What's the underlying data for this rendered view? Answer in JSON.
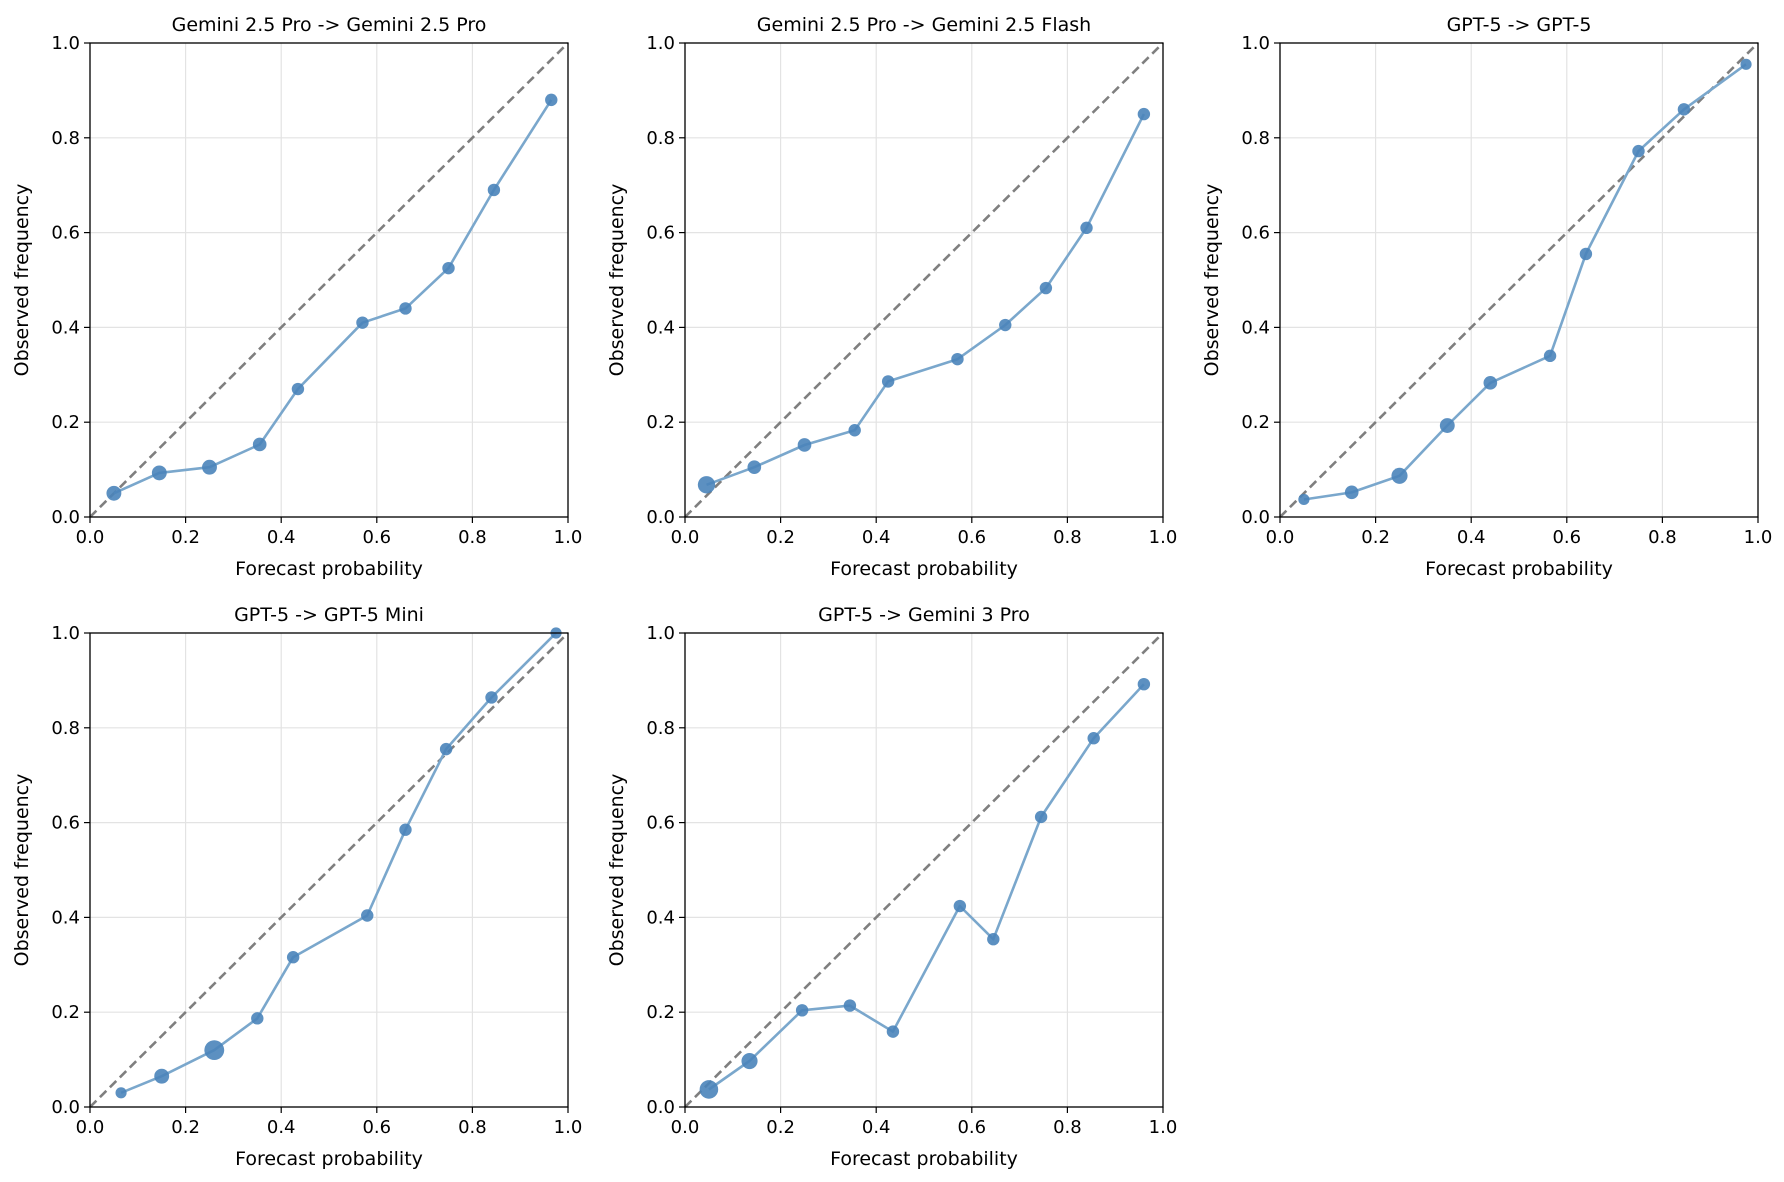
{
  "figure": {
    "layout": "2 rows x 3 columns, 5 panels"
  },
  "colors": {
    "series": "#4a84ba",
    "line": "#7aa7cc",
    "diagonal": "#7f7f7f",
    "grid": "#e3e3e3",
    "axes": "#000000"
  },
  "chart_data": [
    {
      "type": "line",
      "title": "Gemini 2.5 Pro -> Gemini 2.5 Pro",
      "xlabel": "Forecast probability",
      "ylabel": "Observed frequency",
      "xlim": [
        0,
        1
      ],
      "ylim": [
        0,
        1
      ],
      "ticks": [
        "0.0",
        "0.2",
        "0.4",
        "0.6",
        "0.8",
        "1.0"
      ],
      "grid": true,
      "reference": "perfect calibration diagonal (dashed)",
      "x": [
        0.05,
        0.145,
        0.25,
        0.355,
        0.435,
        0.57,
        0.66,
        0.75,
        0.845,
        0.965
      ],
      "y": [
        0.05,
        0.093,
        0.105,
        0.153,
        0.27,
        0.41,
        0.44,
        0.525,
        0.69,
        0.88
      ],
      "sizes": [
        1.2,
        1.2,
        1.2,
        1.1,
        1.0,
        1.0,
        1.0,
        1.0,
        1.0,
        1.0
      ]
    },
    {
      "type": "line",
      "title": "Gemini 2.5 Pro -> Gemini 2.5 Flash",
      "xlabel": "Forecast probability",
      "ylabel": "Observed frequency",
      "xlim": [
        0,
        1
      ],
      "ylim": [
        0,
        1
      ],
      "ticks": [
        "0.0",
        "0.2",
        "0.4",
        "0.6",
        "0.8",
        "1.0"
      ],
      "grid": true,
      "reference": "perfect calibration diagonal (dashed)",
      "x": [
        0.045,
        0.145,
        0.25,
        0.355,
        0.425,
        0.57,
        0.67,
        0.755,
        0.84,
        0.96
      ],
      "y": [
        0.068,
        0.105,
        0.152,
        0.183,
        0.286,
        0.333,
        0.405,
        0.483,
        0.61,
        0.85
      ],
      "sizes": [
        1.4,
        1.1,
        1.1,
        1.0,
        1.0,
        1.0,
        1.0,
        1.0,
        1.0,
        1.0
      ]
    },
    {
      "type": "line",
      "title": "GPT-5 -> GPT-5",
      "xlabel": "Forecast probability",
      "ylabel": "Observed frequency",
      "xlim": [
        0,
        1
      ],
      "ylim": [
        0,
        1
      ],
      "ticks": [
        "0.0",
        "0.2",
        "0.4",
        "0.6",
        "0.8",
        "1.0"
      ],
      "grid": true,
      "reference": "perfect calibration diagonal (dashed)",
      "x": [
        0.05,
        0.15,
        0.25,
        0.35,
        0.44,
        0.565,
        0.64,
        0.75,
        0.845,
        0.975
      ],
      "y": [
        0.037,
        0.052,
        0.087,
        0.193,
        0.283,
        0.34,
        0.555,
        0.772,
        0.86,
        0.955
      ],
      "sizes": [
        0.9,
        1.1,
        1.3,
        1.2,
        1.1,
        1.0,
        1.0,
        1.0,
        1.0,
        0.9
      ]
    },
    {
      "type": "line",
      "title": "GPT-5 -> GPT-5 Mini",
      "xlabel": "Forecast probability",
      "ylabel": "Observed frequency",
      "xlim": [
        0,
        1
      ],
      "ylim": [
        0,
        1
      ],
      "ticks": [
        "0.0",
        "0.2",
        "0.4",
        "0.6",
        "0.8",
        "1.0"
      ],
      "grid": true,
      "reference": "perfect calibration diagonal (dashed)",
      "x": [
        0.065,
        0.15,
        0.26,
        0.35,
        0.425,
        0.58,
        0.66,
        0.745,
        0.84,
        0.975
      ],
      "y": [
        0.03,
        0.065,
        0.12,
        0.187,
        0.316,
        0.404,
        0.585,
        0.755,
        0.864,
        1.0
      ],
      "sizes": [
        0.9,
        1.2,
        1.6,
        1.0,
        1.0,
        1.0,
        1.0,
        1.0,
        1.0,
        0.9
      ]
    },
    {
      "type": "line",
      "title": "GPT-5 -> Gemini 3 Pro",
      "xlabel": "Forecast probability",
      "ylabel": "Observed frequency",
      "xlim": [
        0,
        1
      ],
      "ylim": [
        0,
        1
      ],
      "ticks": [
        "0.0",
        "0.2",
        "0.4",
        "0.6",
        "0.8",
        "1.0"
      ],
      "grid": true,
      "reference": "perfect calibration diagonal (dashed)",
      "x": [
        0.05,
        0.135,
        0.245,
        0.345,
        0.435,
        0.575,
        0.645,
        0.745,
        0.855,
        0.96
      ],
      "y": [
        0.037,
        0.097,
        0.204,
        0.214,
        0.159,
        0.424,
        0.354,
        0.612,
        0.778,
        0.892
      ],
      "sizes": [
        1.5,
        1.3,
        1.0,
        1.0,
        1.0,
        1.0,
        1.0,
        1.0,
        1.0,
        1.0
      ]
    }
  ]
}
